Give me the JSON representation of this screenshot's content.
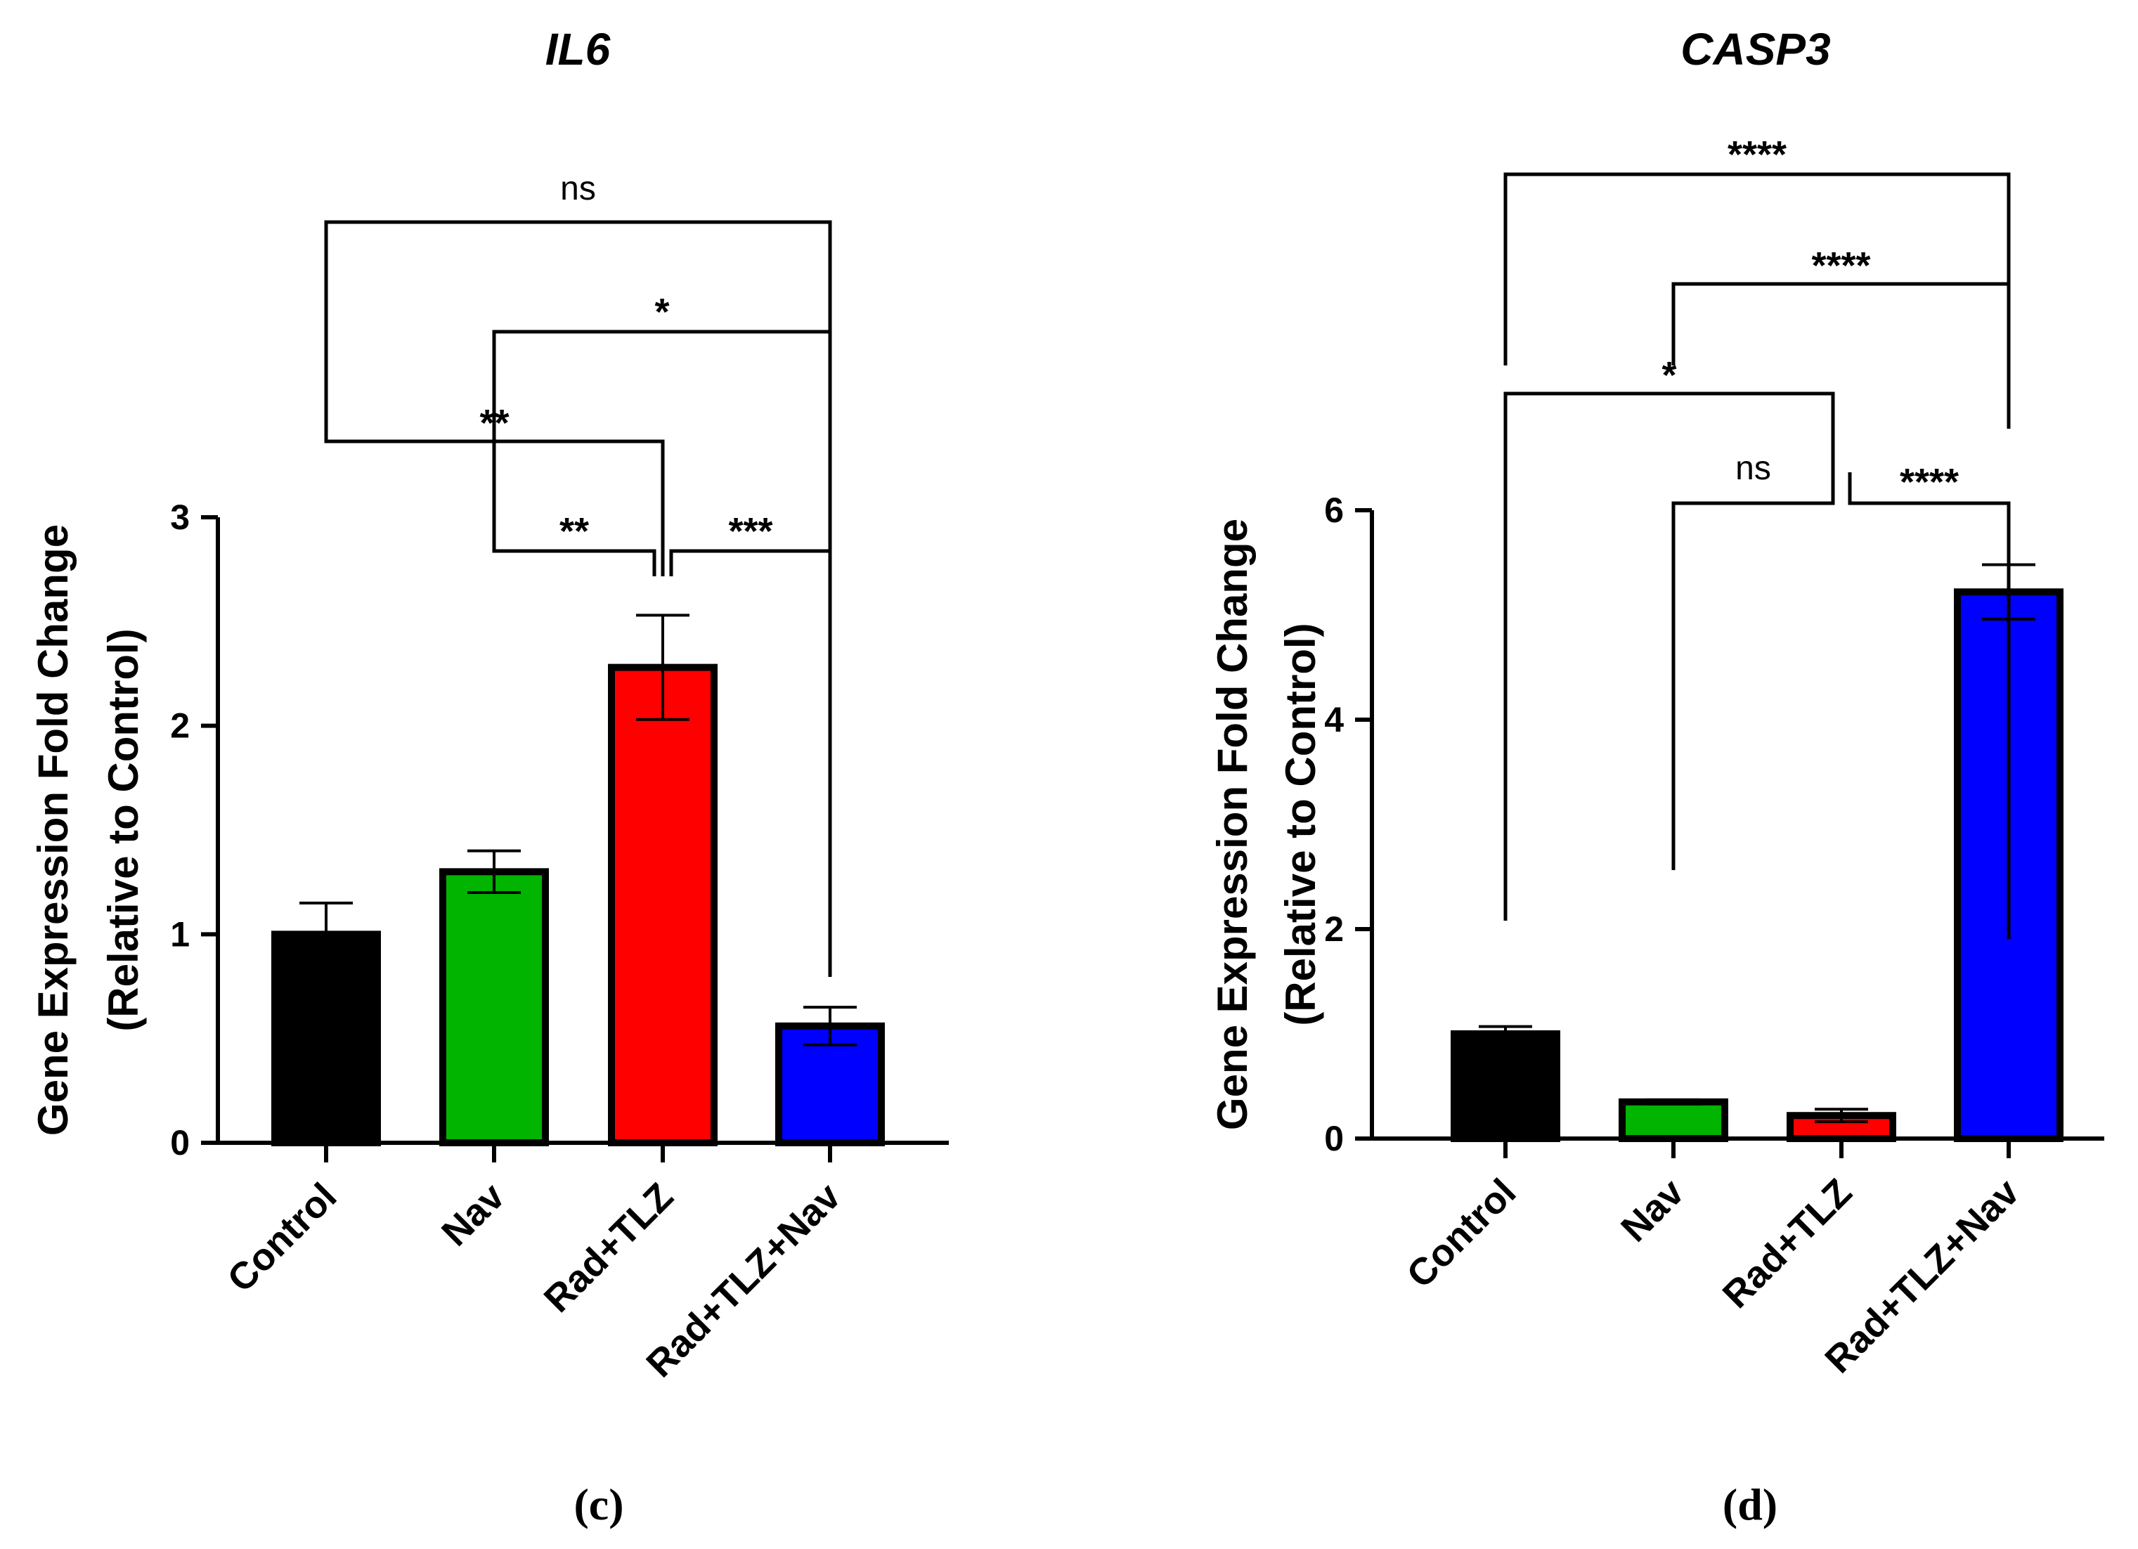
{
  "chart_data": [
    {
      "type": "bar",
      "panel_label": "(c)",
      "title": "IL6",
      "ylabel_line1": "Gene Expression Fold Change",
      "ylabel_line2": "(Relative to Control)",
      "xlabel": "",
      "categories": [
        "Control",
        "Nav",
        "Rad+TLZ",
        "Rad+TLZ+Nav"
      ],
      "values": [
        1.0,
        1.3,
        2.28,
        0.56
      ],
      "errors": [
        0.15,
        0.1,
        0.25,
        0.09
      ],
      "colors": [
        "#000000",
        "#00b400",
        "#ff0000",
        "#0000ff"
      ],
      "ylim": [
        0,
        3
      ],
      "yticks": [
        0,
        1,
        2,
        3
      ],
      "comparisons": [
        {
          "from": "Control",
          "to": "Rad+TLZ+Nav",
          "label": "ns"
        },
        {
          "from": "Nav",
          "to": "Rad+TLZ+Nav",
          "label": "*"
        },
        {
          "from": "Control",
          "to": "Rad+TLZ",
          "label": "**"
        },
        {
          "from": "Nav",
          "to": "Rad+TLZ",
          "label": "**"
        },
        {
          "from": "Rad+TLZ",
          "to": "Rad+TLZ+Nav",
          "label": "***"
        }
      ]
    },
    {
      "type": "bar",
      "panel_label": "(d)",
      "title": "CASP3",
      "ylabel_line1": "Gene Expression Fold Change",
      "ylabel_line2": "(Relative to Control)",
      "xlabel": "",
      "categories": [
        "Control",
        "Nav",
        "Rad+TLZ",
        "Rad+TLZ+Nav"
      ],
      "values": [
        1.0,
        0.35,
        0.22,
        5.22
      ],
      "errors": [
        0.07,
        0.02,
        0.06,
        0.26
      ],
      "colors": [
        "#000000",
        "#00b400",
        "#ff0000",
        "#0000ff"
      ],
      "ylim": [
        0,
        6
      ],
      "yticks": [
        0,
        2,
        4,
        6
      ],
      "comparisons": [
        {
          "from": "Control",
          "to": "Rad+TLZ+Nav",
          "label": "****"
        },
        {
          "from": "Nav",
          "to": "Rad+TLZ+Nav",
          "label": "****"
        },
        {
          "from": "Control",
          "to": "Rad+TLZ",
          "label": "*"
        },
        {
          "from": "Nav",
          "to": "Rad+TLZ",
          "label": "ns"
        },
        {
          "from": "Rad+TLZ",
          "to": "Rad+TLZ+Nav",
          "label": "****"
        }
      ]
    }
  ]
}
